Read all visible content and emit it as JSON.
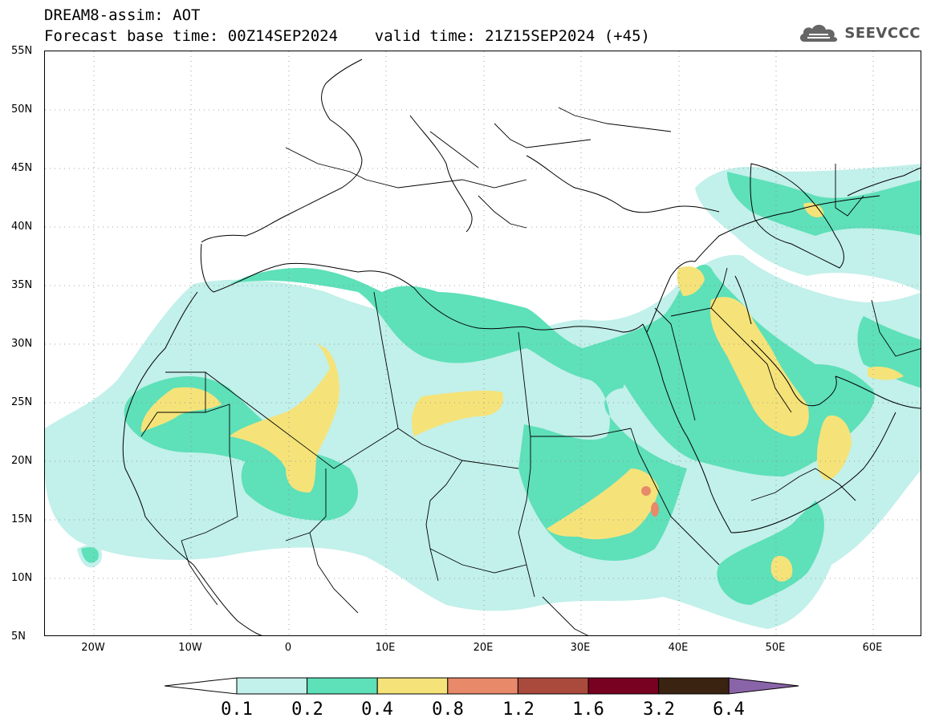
{
  "header": {
    "title_line1": "DREAM8-assim: AOT",
    "title_line2": "Forecast base time: 00Z14SEP2024    valid time: 21Z15SEP2024 (+45)"
  },
  "brand": {
    "name": "SEEVCCC",
    "icon": "cloud-logo-icon"
  },
  "map": {
    "projection": "lat-lon",
    "lon_range": [
      -25,
      65
    ],
    "lat_range": [
      5,
      55
    ],
    "lat_labels": [
      "55N",
      "50N",
      "45N",
      "40N",
      "35N",
      "30N",
      "25N",
      "20N",
      "15N",
      "10N",
      "5N"
    ],
    "lon_labels": [
      "20W",
      "10W",
      "0",
      "10E",
      "20E",
      "30E",
      "40E",
      "50E",
      "60E"
    ],
    "gridlines": "dotted"
  },
  "colorbar": {
    "labels": [
      "0.1",
      "0.2",
      "0.4",
      "0.8",
      "1.2",
      "1.6",
      "3.2",
      "6.4"
    ],
    "colors": [
      "#c2f0ea",
      "#5ee0b9",
      "#f5e37a",
      "#e8896a",
      "#a94a3c",
      "#780020",
      "#3a2310",
      "#8a64a8"
    ]
  }
}
